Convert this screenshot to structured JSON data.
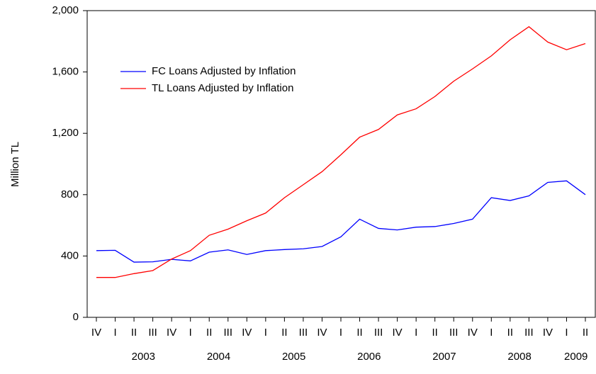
{
  "chart_data": {
    "type": "line",
    "y_label": "Million TL",
    "categories": [
      "IV",
      "I",
      "II",
      "III",
      "IV",
      "I",
      "II",
      "III",
      "IV",
      "I",
      "II",
      "III",
      "IV",
      "I",
      "II",
      "III",
      "IV",
      "I",
      "II",
      "III",
      "IV",
      "I",
      "II",
      "III",
      "IV",
      "I",
      "II"
    ],
    "years": [
      "2003",
      "2004",
      "2005",
      "2006",
      "2007",
      "2008",
      "2009"
    ],
    "series": [
      {
        "name": "FC Loans Adjusted by Inflation",
        "color": "#0000ff",
        "values": [
          435,
          437,
          360,
          362,
          378,
          368,
          425,
          440,
          410,
          435,
          442,
          447,
          462,
          525,
          640,
          580,
          570,
          588,
          592,
          612,
          640,
          780,
          762,
          792,
          880,
          890,
          800
        ]
      },
      {
        "name": "TL Loans Adjusted by Inflation",
        "color": "#ff0000",
        "values": [
          260,
          260,
          285,
          305,
          380,
          435,
          535,
          575,
          630,
          680,
          780,
          865,
          950,
          1060,
          1175,
          1225,
          1320,
          1360,
          1440,
          1540,
          1620,
          1705,
          1810,
          1895,
          1795,
          1745,
          1785
        ]
      }
    ],
    "ylim": [
      0,
      2000
    ],
    "yticks": [
      0,
      400,
      800,
      {
        "value": 1200,
        "label": "1,200"
      },
      {
        "value": 1600,
        "label": "1,600"
      },
      {
        "value": 2000,
        "label": "2,000"
      }
    ],
    "legend": "upper left"
  }
}
